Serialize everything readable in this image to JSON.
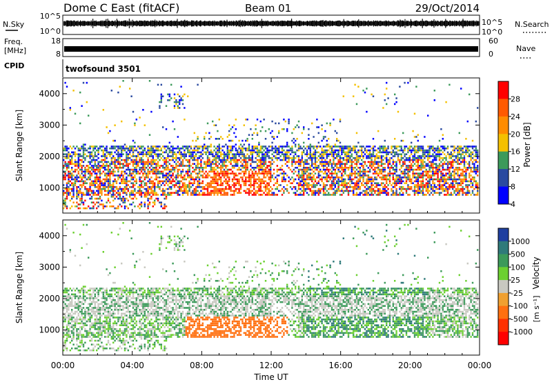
{
  "header": {
    "station": "Dome C East (fitACF)",
    "beam": "Beam 01",
    "date": "29/Oct/2014"
  },
  "top_panels": {
    "nsky_label": "N.Sky",
    "nsky_ticks": [
      "10^5",
      "10^0"
    ],
    "nsearch_label": "N.Search",
    "nsearch_ticks": [
      "10^5",
      "10^0"
    ],
    "freq_label": "Freq.",
    "freq_unit": "[MHz]",
    "freq_ticks": [
      "18",
      "8"
    ],
    "nave_label": "Nave",
    "nave_ticks": [
      "60",
      "0"
    ],
    "cpid_label": "CPID",
    "cpid_value": "twofsound 3501"
  },
  "chart_data": [
    {
      "type": "heatmap",
      "name": "power-panel",
      "ylabel": "Slant Range [km]",
      "ylim": [
        200,
        4500
      ],
      "yticks": [
        1000,
        2000,
        3000,
        4000
      ],
      "colorbar_label": "Power [dB]",
      "colorbar_ticks": [
        "28",
        "24",
        "20",
        "16",
        "12",
        "8",
        "4"
      ],
      "colorbar_colors": [
        "#ff0000",
        "#ff5a00",
        "#ff8c00",
        "#f4c000",
        "#3c9a5a",
        "#2a4aa0",
        "#0000ff"
      ]
    },
    {
      "type": "heatmap",
      "name": "velocity-panel",
      "ylabel": "Slant Range [km]",
      "ylim": [
        200,
        4500
      ],
      "yticks": [
        1000,
        2000,
        3000,
        4000
      ],
      "colorbar_label": "Velocity",
      "colorbar_unit": "[m s⁻¹]",
      "colorbar_ticks": [
        "1000",
        "500",
        "100",
        "25",
        "-25",
        "-100",
        "-500",
        "-1000"
      ],
      "colorbar_colors": [
        "#1f3fa0",
        "#2f7a7a",
        "#3c9a5a",
        "#6cd030",
        "#c8c8c0",
        "#f0a030",
        "#ff7010",
        "#ff3000",
        "#ff0000"
      ]
    }
  ],
  "x_axis": {
    "xlabel": "Time UT",
    "xticks": [
      "00:00",
      "04:00",
      "08:00",
      "12:00",
      "16:00",
      "20:00",
      "00:00"
    ]
  }
}
